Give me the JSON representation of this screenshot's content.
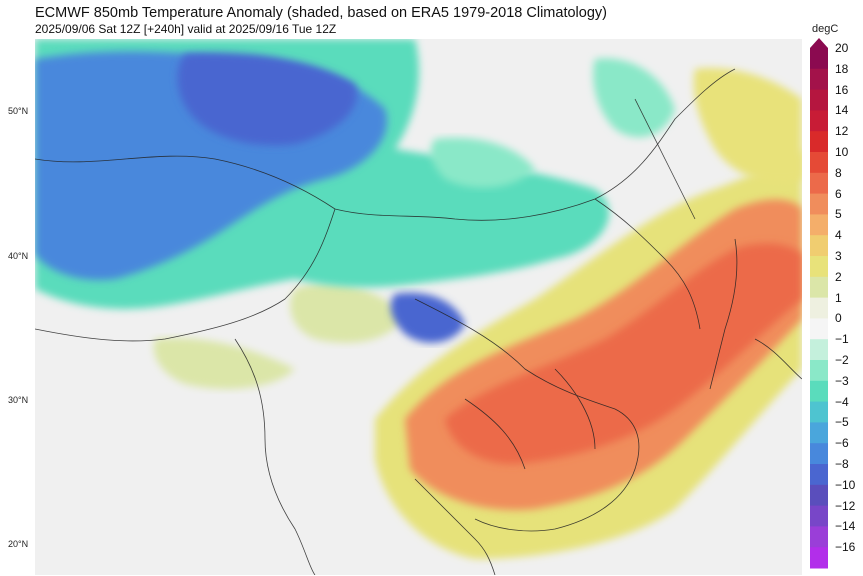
{
  "title": "ECMWF 850mb Temperature Anomaly (shaded, based on ERA5 1979-2018 Climatology)",
  "subtitle": "2025/09/06 Sat 12Z [+240h] valid at 2025/09/16 Tue 12Z",
  "latitude_labels": [
    "50°N",
    "40°N",
    "30°N",
    "20°N"
  ],
  "colorbar": {
    "unit": "degC",
    "levels": [
      "20",
      "18",
      "16",
      "14",
      "12",
      "10",
      "8",
      "6",
      "5",
      "4",
      "3",
      "2",
      "1",
      "0",
      "−1",
      "−2",
      "−3",
      "−4",
      "−5",
      "−6",
      "−8",
      "−10",
      "−12",
      "−14",
      "−16"
    ],
    "colors": [
      "#8b0a50",
      "#a3124a",
      "#b5163f",
      "#c81c36",
      "#d92a2a",
      "#e54a36",
      "#ec6a4a",
      "#f08d5c",
      "#f4ae6a",
      "#f0cd70",
      "#e8e27a",
      "#dbe6a8",
      "#eef0e0",
      "#f5f5f5",
      "#c4f0dc",
      "#8ae8c8",
      "#5adcbc",
      "#4ec4d0",
      "#4aa6dc",
      "#4888dc",
      "#4a66d0",
      "#5a4ebc",
      "#7846c8",
      "#9a3ed8",
      "#b22eea"
    ]
  },
  "map": {
    "description_colors": {
      "cold_core": "#4a66d0",
      "cool": "#5adcbc",
      "neutral": "#f0f0f0",
      "warm": "#e8e27a",
      "hot": "#ec6a4a"
    }
  }
}
